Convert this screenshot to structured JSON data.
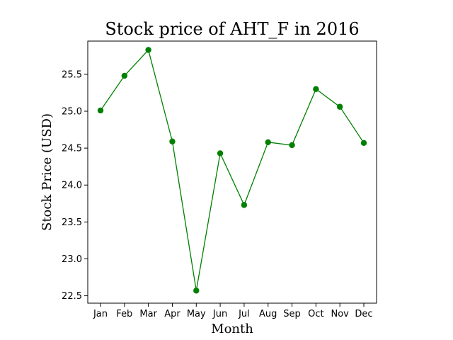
{
  "chart_data": {
    "type": "line",
    "title": "Stock price of AHT_F in 2016",
    "xlabel": "Month",
    "ylabel": "Stock Price (USD)",
    "categories": [
      "Jan",
      "Feb",
      "Mar",
      "Apr",
      "May",
      "Jun",
      "Jul",
      "Aug",
      "Sep",
      "Oct",
      "Nov",
      "Dec"
    ],
    "series": [
      {
        "values": [
          25.01,
          25.48,
          25.83,
          24.59,
          22.57,
          24.43,
          23.73,
          24.58,
          24.54,
          25.3,
          25.06,
          24.57
        ],
        "color": "#008000",
        "marker": "circle"
      }
    ],
    "yticks": [
      "22.5",
      "23.0",
      "23.5",
      "24.0",
      "24.5",
      "25.0",
      "25.5"
    ],
    "ylim": [
      22.4,
      25.95
    ],
    "grid": false
  }
}
